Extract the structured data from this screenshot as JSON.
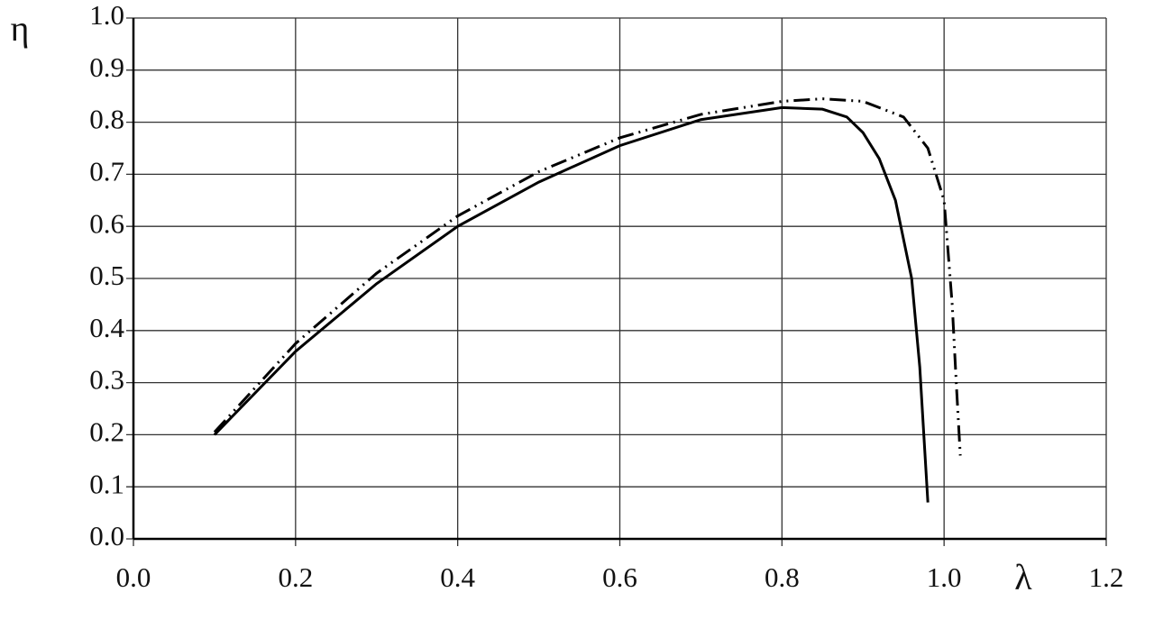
{
  "chart_data": {
    "type": "line",
    "x_label": "λ",
    "y_label": "η",
    "xlim": [
      0,
      1.2
    ],
    "xticks": [
      {
        "value": 0,
        "label": "0.0"
      },
      0.2,
      0.4,
      0.6,
      0.8,
      {
        "value": 1,
        "label": "1.0"
      },
      1.2
    ],
    "ylim": [
      0,
      1
    ],
    "yticks": [
      {
        "value": 0,
        "label": "0.0"
      },
      0.1,
      0.2,
      0.3,
      0.4,
      0.5,
      0.6,
      0.7,
      0.8,
      0.9,
      {
        "value": 1,
        "label": "1.0"
      }
    ],
    "grid": true,
    "series": [
      {
        "color": "#000000",
        "style": "solid",
        "x": [
          0.1,
          0.2,
          0.3,
          0.4,
          0.5,
          0.6,
          0.7,
          0.8,
          0.85,
          0.88,
          0.9,
          0.92,
          0.94,
          0.96,
          0.97,
          0.98
        ],
        "values": [
          0.2,
          0.36,
          0.49,
          0.6,
          0.685,
          0.755,
          0.805,
          0.828,
          0.825,
          0.81,
          0.78,
          0.73,
          0.65,
          0.5,
          0.33,
          0.07
        ]
      },
      {
        "color": "#000000",
        "style": "dash-dot-dot",
        "x": [
          0.1,
          0.2,
          0.3,
          0.4,
          0.5,
          0.6,
          0.7,
          0.8,
          0.85,
          0.9,
          0.95,
          0.98,
          1.0,
          1.01,
          1.015,
          1.02
        ],
        "values": [
          0.205,
          0.375,
          0.51,
          0.62,
          0.705,
          0.77,
          0.815,
          0.84,
          0.845,
          0.84,
          0.81,
          0.75,
          0.65,
          0.45,
          0.3,
          0.16
        ]
      }
    ]
  }
}
